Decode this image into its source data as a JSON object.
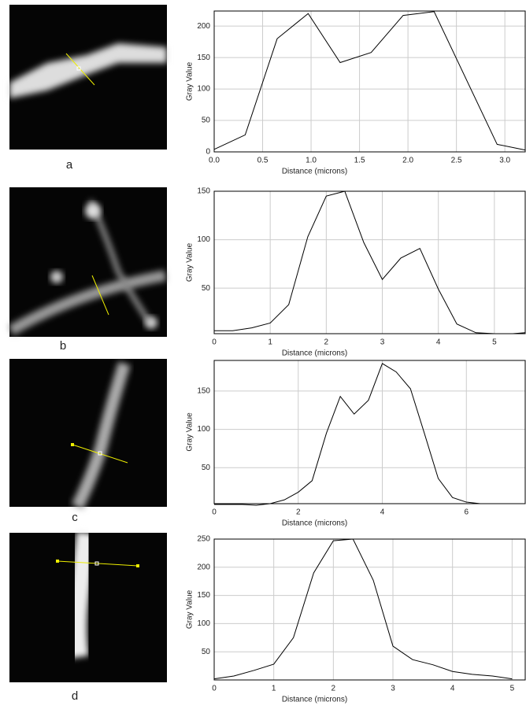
{
  "panel_labels": [
    "a",
    "b",
    "c",
    "d"
  ],
  "chart_data": [
    {
      "type": "line",
      "x_label": "Distance (microns)",
      "y_label": "Gray Value",
      "color": "#000000",
      "grid": true,
      "x": [
        0,
        0.32,
        0.65,
        0.97,
        1.3,
        1.62,
        1.95,
        2.27,
        2.92,
        3.21
      ],
      "values": [
        4,
        27,
        180,
        220,
        142,
        158,
        217,
        223,
        12,
        3
      ],
      "xlim": [
        0,
        3.21
      ],
      "ylim": [
        0,
        224
      ],
      "xticks": [
        {
          "value": 0,
          "label": "0.0"
        },
        0.5,
        {
          "value": 1,
          "label": "1.0"
        },
        1.5,
        {
          "value": 2,
          "label": "2.0"
        },
        2.5,
        {
          "value": 3,
          "label": "3.0"
        }
      ],
      "yticks": [
        0,
        50,
        100,
        150,
        200
      ]
    },
    {
      "type": "line",
      "x_label": "Distance (microns)",
      "y_label": "Gray Value",
      "color": "#000000",
      "grid": true,
      "x": [
        0,
        0.33,
        0.67,
        1,
        1.33,
        1.67,
        2,
        2.33,
        2.67,
        3,
        3.33,
        3.67,
        4,
        4.33,
        4.67,
        5,
        5.33,
        5.55
      ],
      "values": [
        6,
        6,
        9,
        14,
        33,
        103,
        145,
        150,
        97,
        59,
        81,
        91,
        49,
        13,
        4,
        3,
        3,
        4
      ],
      "xlim": [
        0,
        5.55
      ],
      "ylim": [
        3,
        150
      ],
      "xticks": [
        0,
        1,
        2,
        3,
        4,
        5
      ],
      "yticks": [
        50,
        100,
        150
      ]
    },
    {
      "type": "line",
      "x_label": "Distance (microns)",
      "y_label": "Gray Value",
      "color": "#000000",
      "grid": true,
      "x": [
        0,
        0.33,
        0.67,
        1,
        1.33,
        1.67,
        2,
        2.33,
        2.67,
        3,
        3.33,
        3.67,
        4,
        4.33,
        4.67,
        5,
        5.33,
        5.67,
        6,
        6.33,
        6.67
      ],
      "values": [
        2,
        2,
        2,
        1,
        3,
        8,
        18,
        33,
        95,
        143,
        120,
        138,
        186,
        175,
        153,
        95,
        36,
        11,
        5,
        3,
        3
      ],
      "xlim": [
        0,
        7.4
      ],
      "ylim": [
        3,
        190
      ],
      "xticks": [
        0,
        2,
        4,
        6
      ],
      "yticks": [
        50,
        100,
        150
      ]
    },
    {
      "type": "line",
      "x_label": "Distance (microns)",
      "y_label": "Gray Value",
      "color": "#000000",
      "grid": true,
      "x": [
        0,
        0.33,
        0.67,
        1,
        1.33,
        1.67,
        2,
        2.33,
        2.67,
        3,
        3.33,
        3.67,
        4,
        4.33,
        4.67,
        5
      ],
      "values": [
        2,
        7,
        17,
        28,
        75,
        190,
        247,
        250,
        177,
        60,
        36,
        27,
        15,
        10,
        7,
        2
      ],
      "xlim": [
        0,
        5.22
      ],
      "ylim": [
        0,
        250
      ],
      "xticks": [
        0,
        1,
        2,
        3,
        4,
        5
      ],
      "yticks": [
        50,
        100,
        150,
        200,
        250
      ]
    }
  ]
}
